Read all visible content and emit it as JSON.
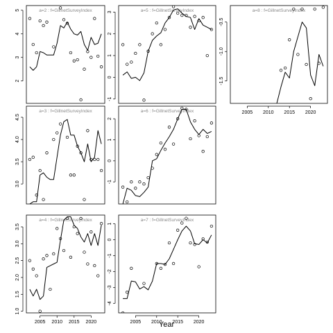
{
  "xlabel": "Year",
  "chart_data": [
    {
      "type": "line",
      "title": "a=2 : f=GillnetSurveyIndex",
      "xlim": [
        2001,
        2024
      ],
      "ylim": [
        1.05,
        5.2
      ],
      "xticks": [],
      "yticks": [
        2,
        3,
        4,
        5
      ],
      "series": [
        {
          "style": "line",
          "x": [
            2002,
            2003,
            2004,
            2005,
            2006,
            2007,
            2008,
            2009,
            2010,
            2011,
            2012,
            2013,
            2014,
            2015,
            2016,
            2017,
            2018,
            2019,
            2020,
            2021,
            2022,
            2023
          ],
          "values": [
            2.6,
            2.45,
            2.6,
            3.25,
            3.2,
            3.1,
            3.1,
            3.1,
            3.6,
            4.35,
            4.25,
            4.5,
            4.2,
            4.0,
            3.95,
            4.1,
            3.55,
            3.3,
            3.85,
            3.55,
            3.6,
            4.0
          ]
        },
        {
          "style": "points",
          "x": [
            2002,
            2003,
            2004,
            2005,
            2006,
            2007,
            2009,
            2011,
            2012,
            2013,
            2014,
            2015,
            2016,
            2017,
            2018,
            2019,
            2020,
            2021,
            2022,
            2023
          ],
          "values": [
            4.65,
            3.55,
            3.2,
            4.55,
            4.35,
            4.5,
            3.45,
            5.1,
            4.6,
            4.45,
            3.2,
            2.85,
            2.9,
            1.2,
            2.5,
            3.25,
            3.0,
            4.65,
            3.05,
            2.6
          ]
        }
      ]
    },
    {
      "type": "line",
      "title": "a=5 : f=GillnetSurveyIndex",
      "xlim": [
        2001,
        2024
      ],
      "ylim": [
        -1.2,
        3.3
      ],
      "xticks": [],
      "yticks": [
        -1,
        0,
        1,
        2,
        3
      ],
      "series": [
        {
          "style": "line",
          "x": [
            2002,
            2003,
            2004,
            2005,
            2006,
            2007,
            2008,
            2009,
            2010,
            2011,
            2012,
            2013,
            2014,
            2015,
            2016,
            2017,
            2018,
            2019,
            2020,
            2021,
            2022,
            2023
          ],
          "values": [
            0.1,
            0.25,
            -0.05,
            0.0,
            -0.15,
            0.2,
            1.2,
            1.7,
            1.9,
            2.05,
            2.5,
            2.75,
            3.1,
            3.15,
            2.95,
            2.8,
            2.75,
            2.2,
            2.7,
            2.4,
            2.3,
            2.2
          ]
        },
        {
          "style": "points",
          "x": [
            2002,
            2003,
            2004,
            2005,
            2006,
            2007,
            2008,
            2009,
            2010,
            2011,
            2012,
            2013,
            2014,
            2015,
            2016,
            2017,
            2018,
            2019,
            2020,
            2021,
            2022,
            2023
          ],
          "values": [
            1.5,
            0.6,
            0.7,
            1.1,
            1.5,
            -1.05,
            1.2,
            2.0,
            2.5,
            1.5,
            2.2,
            2.75,
            3.25,
            2.95,
            2.85,
            2.85,
            2.3,
            2.8,
            2.6,
            2.75,
            1.0,
            2.2
          ]
        }
      ]
    },
    {
      "type": "line",
      "title": "a=8 : f=GillnetSurveyIndex",
      "xlim": [
        2001,
        2024
      ],
      "ylim": [
        -1.88,
        -0.22
      ],
      "xticks": [
        2005,
        2010,
        2015,
        2020
      ],
      "yticks": [
        -1.5,
        -1.0,
        -0.5
      ],
      "series": [
        {
          "style": "line",
          "x": [
            2012,
            2013,
            2014,
            2015,
            2016,
            2017,
            2018,
            2019,
            2020,
            2021,
            2022,
            2023
          ],
          "values": [
            -1.88,
            -1.6,
            -1.35,
            -1.45,
            -1.0,
            -0.75,
            -0.5,
            -0.6,
            -1.4,
            -1.58,
            -1.05,
            -1.25
          ]
        },
        {
          "style": "points",
          "x": [
            2013,
            2014,
            2015,
            2016,
            2017,
            2018,
            2019,
            2020,
            2021,
            2022,
            2023
          ],
          "values": [
            -1.32,
            -1.28,
            -0.8,
            -0.28,
            -1.05,
            -0.28,
            -1.22,
            -1.8,
            -0.28,
            -1.2,
            -0.25
          ]
        }
      ]
    },
    {
      "type": "line",
      "title": "a=3 : f=GillnetSurveyIndex",
      "xlim": [
        2001,
        2024
      ],
      "ylim": [
        2.55,
        4.75
      ],
      "xticks": [],
      "yticks": [
        3.0,
        3.5,
        4.0,
        4.5
      ],
      "series": [
        {
          "style": "line",
          "x": [
            2002,
            2003,
            2004,
            2005,
            2006,
            2007,
            2008,
            2009,
            2010,
            2011,
            2012,
            2013,
            2014,
            2015,
            2016,
            2017,
            2018,
            2019,
            2020,
            2021,
            2022,
            2023
          ],
          "values": [
            2.55,
            2.6,
            2.6,
            3.2,
            3.25,
            3.15,
            3.1,
            3.1,
            3.6,
            4.1,
            4.4,
            4.45,
            4.1,
            4.1,
            3.85,
            3.7,
            3.5,
            3.9,
            3.5,
            3.6,
            4.2,
            3.9
          ]
        },
        {
          "style": "points",
          "x": [
            2002,
            2003,
            2004,
            2005,
            2006,
            2007,
            2009,
            2010,
            2011,
            2012,
            2013,
            2014,
            2015,
            2016,
            2017,
            2018,
            2019,
            2020,
            2021,
            2022,
            2023
          ],
          "values": [
            3.55,
            3.6,
            2.75,
            3.3,
            2.65,
            3.7,
            4.0,
            4.15,
            4.35,
            4.8,
            4.05,
            3.2,
            3.2,
            3.85,
            3.7,
            2.65,
            4.2,
            3.55,
            3.55,
            3.55,
            3.3
          ]
        }
      ]
    },
    {
      "type": "line",
      "title": "a=6 : f=GillnetSurveyIndex",
      "xlim": [
        2001,
        2024
      ],
      "ylim": [
        -2.05,
        2.6
      ],
      "xticks": [],
      "yticks": [
        -1,
        0,
        1,
        2
      ],
      "series": [
        {
          "style": "line",
          "x": [
            2002,
            2003,
            2004,
            2005,
            2006,
            2007,
            2008,
            2009,
            2010,
            2011,
            2012,
            2013,
            2014,
            2015,
            2016,
            2017,
            2018,
            2019,
            2020,
            2021,
            2022,
            2023
          ],
          "values": [
            -2.05,
            -1.3,
            -1.4,
            -1.65,
            -1.7,
            -1.5,
            -1.25,
            0.0,
            0.1,
            0.5,
            0.85,
            1.15,
            1.5,
            2.0,
            2.45,
            2.45,
            1.85,
            1.5,
            1.25,
            1.5,
            1.3,
            1.4
          ]
        },
        {
          "style": "points",
          "x": [
            2002,
            2003,
            2004,
            2005,
            2006,
            2007,
            2008,
            2009,
            2010,
            2011,
            2012,
            2013,
            2014,
            2015,
            2016,
            2017,
            2018,
            2019,
            2020,
            2021,
            2022,
            2023
          ],
          "values": [
            -1.25,
            -1.95,
            -1.0,
            -1.3,
            -1.0,
            -1.1,
            -0.8,
            -0.35,
            0.3,
            0.85,
            0.55,
            1.6,
            0.8,
            2.0,
            2.5,
            2.45,
            1.05,
            1.9,
            1.2,
            0.45,
            1.15,
            1.8
          ]
        }
      ]
    },
    {
      "type": "line",
      "title": "a=4 : f=GillnetSurveyIndex",
      "xlim": [
        2001,
        2024
      ],
      "ylim": [
        0.95,
        3.85
      ],
      "xticks": [
        2005,
        2010,
        2015,
        2020
      ],
      "yticks": [
        1.0,
        1.5,
        2.0,
        2.5,
        3.0,
        3.5
      ],
      "series": [
        {
          "style": "line",
          "x": [
            2002,
            2003,
            2004,
            2005,
            2006,
            2007,
            2008,
            2009,
            2010,
            2011,
            2012,
            2013,
            2014,
            2015,
            2016,
            2017,
            2018,
            2019,
            2020,
            2021,
            2022,
            2023
          ],
          "values": [
            1.65,
            1.45,
            1.65,
            1.35,
            1.45,
            2.3,
            2.35,
            2.4,
            2.45,
            3.1,
            3.7,
            3.8,
            3.8,
            3.55,
            3.45,
            3.2,
            3.05,
            3.3,
            2.95,
            3.3,
            2.95,
            3.55
          ]
        },
        {
          "style": "points",
          "x": [
            2002,
            2003,
            2004,
            2005,
            2006,
            2007,
            2008,
            2009,
            2010,
            2011,
            2012,
            2013,
            2014,
            2015,
            2016,
            2017,
            2018,
            2019,
            2020,
            2021,
            2022,
            2023
          ],
          "values": [
            2.5,
            2.25,
            2.05,
            1.0,
            2.55,
            2.65,
            1.65,
            2.7,
            3.45,
            3.15,
            2.8,
            3.75,
            2.6,
            3.5,
            3.3,
            3.75,
            2.75,
            2.4,
            3.35,
            2.35,
            2.05,
            3.6
          ]
        }
      ]
    },
    {
      "type": "line",
      "title": "a=7 : f=GillnetSurveyIndex",
      "xlim": [
        2001,
        2024
      ],
      "ylim": [
        -4.6,
        1.55
      ],
      "xticks": [
        2005,
        2010,
        2015,
        2020
      ],
      "yticks": [
        -4,
        -3,
        -2,
        -1,
        0,
        1
      ],
      "series": [
        {
          "style": "line",
          "x": [
            2002,
            2003,
            2004,
            2005,
            2006,
            2007,
            2008,
            2009,
            2010,
            2011,
            2012,
            2013,
            2014,
            2015,
            2016,
            2017,
            2018,
            2019,
            2020,
            2021,
            2022,
            2023
          ],
          "values": [
            -3.7,
            -3.7,
            -2.6,
            -2.65,
            -3.1,
            -2.95,
            -3.15,
            -2.6,
            -1.5,
            -1.5,
            -1.55,
            -1.2,
            -0.6,
            0.0,
            0.55,
            0.85,
            0.55,
            -0.25,
            -0.3,
            0.0,
            -0.2,
            0.3
          ]
        },
        {
          "style": "points",
          "x": [
            2002,
            2003,
            2004,
            2007,
            2010,
            2011,
            2012,
            2013,
            2014,
            2015,
            2016,
            2017,
            2018,
            2019,
            2020,
            2021,
            2022,
            2023
          ],
          "values": [
            -4.6,
            -3.3,
            -1.8,
            -2.75,
            -1.5,
            -1.8,
            -1.55,
            -0.2,
            -1.5,
            0.6,
            1.05,
            1.35,
            -0.2,
            -0.3,
            -1.7,
            0.05,
            -0.15,
            0.85
          ]
        }
      ]
    }
  ]
}
